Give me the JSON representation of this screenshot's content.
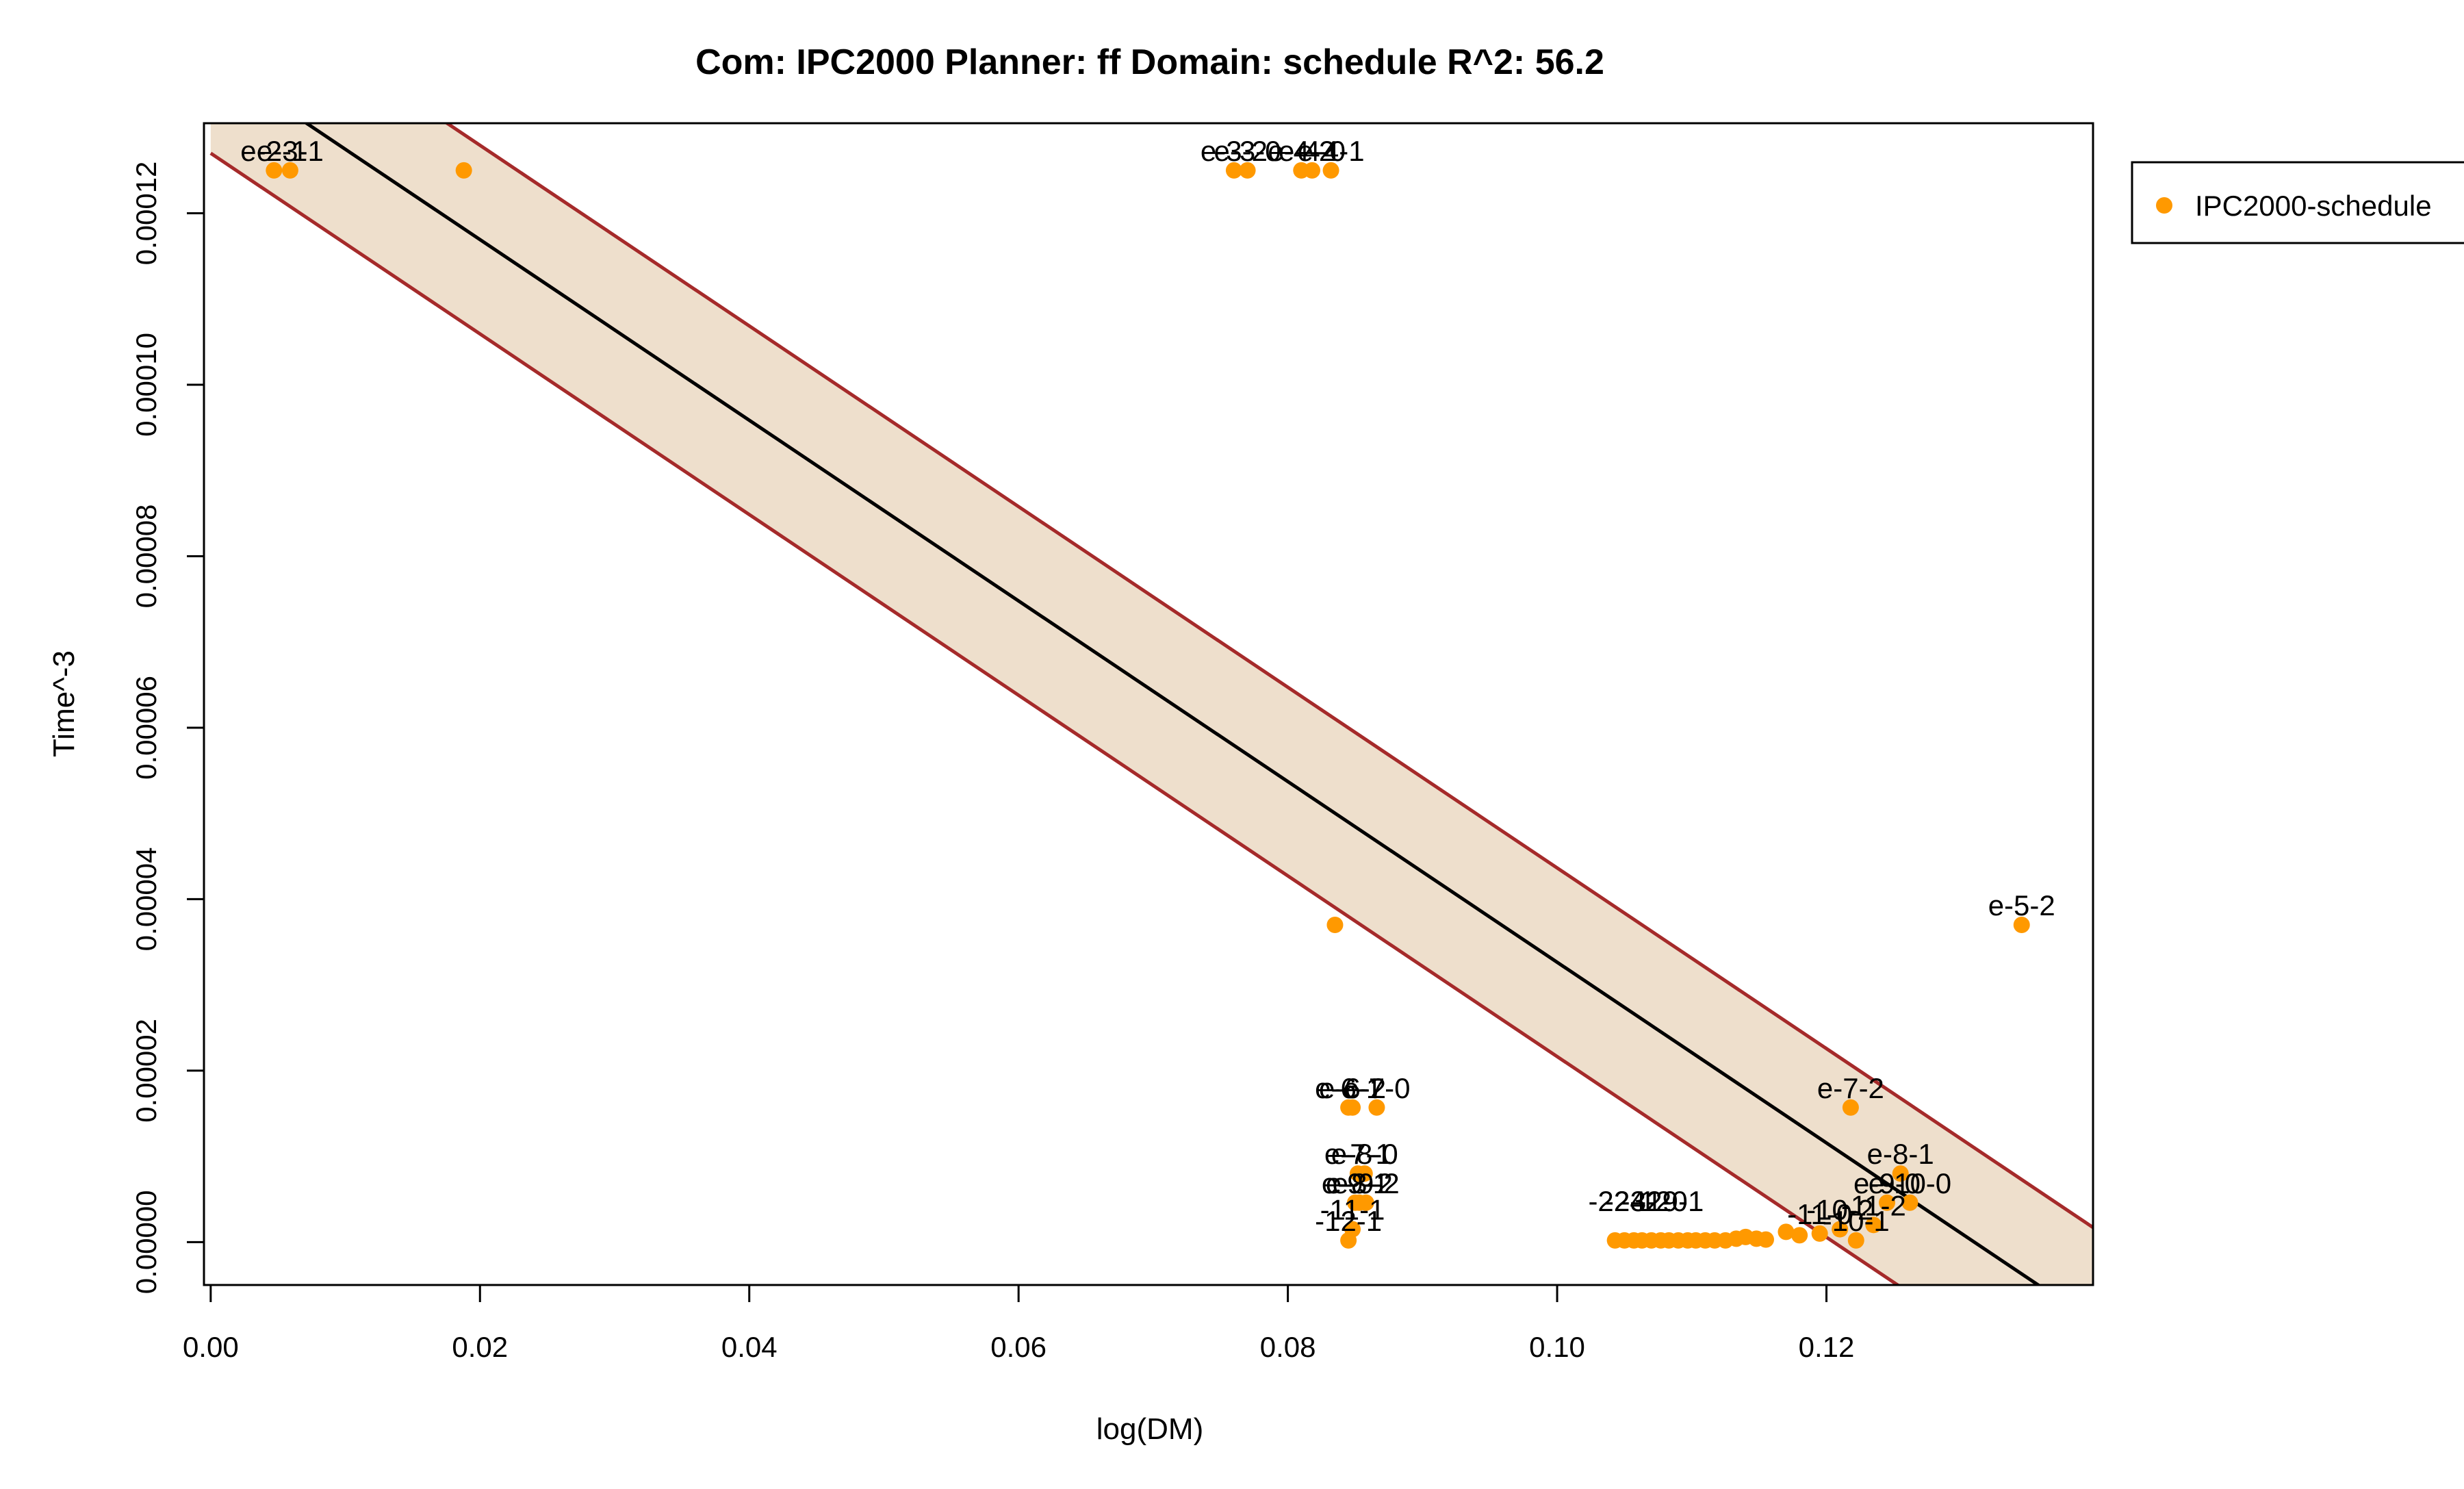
{
  "chart_data": {
    "type": "scatter",
    "title": "Com: IPC2000 Planner: ff Domain: schedule R^2: 56.2",
    "xlabel": "log(DM)",
    "ylabel": "Time^-3",
    "xlim": [
      -0.0005,
      0.1398
    ],
    "ylim": [
      -5e-06,
      0.0001305
    ],
    "xticks": [
      0.0,
      0.02,
      0.04,
      0.06,
      0.08,
      0.1,
      0.12
    ],
    "xtick_labels": [
      "0.00",
      "0.02",
      "0.04",
      "0.06",
      "0.08",
      "0.10",
      "0.12"
    ],
    "yticks": [
      0.0,
      2e-05,
      4e-05,
      6e-05,
      8e-05,
      0.0001,
      0.00012
    ],
    "ytick_labels": [
      "0.00000",
      "0.00002",
      "0.00004",
      "0.00006",
      "0.00008",
      "0.00010",
      "0.00012"
    ],
    "grid": false,
    "legend_position": "top-right, outside plot",
    "colors": {
      "points": "#ff9900",
      "band_fill": "#eedfcc",
      "band_edge": "#a52a2a",
      "fit_line": "#000000"
    },
    "fit": {
      "x": [
        0.0,
        0.14
      ],
      "y": [
        0.000138,
        -9.5e-06
      ]
    },
    "band": {
      "upper": {
        "x": [
          0.0,
          0.14
        ],
        "y": [
          0.000149,
          1.5e-06
        ]
      },
      "lower": {
        "x": [
          0.0,
          0.14
        ],
        "y": [
          0.000127,
          -2.05e-05
        ]
      }
    },
    "series": [
      {
        "name": "IPC2000-schedule",
        "points": [
          {
            "x": 0.0047,
            "y": 0.000125,
            "label": "e-2-1"
          },
          {
            "x": 0.0059,
            "y": 0.000125,
            "label": "e-3-1"
          },
          {
            "x": 0.0188,
            "y": 0.000125,
            "label": ""
          },
          {
            "x": 0.076,
            "y": 0.000125,
            "label": "e-3-2"
          },
          {
            "x": 0.077,
            "y": 0.000125,
            "label": "e-3-0"
          },
          {
            "x": 0.081,
            "y": 0.000125,
            "label": "e-4-2"
          },
          {
            "x": 0.0818,
            "y": 0.000125,
            "label": "e-4-0"
          },
          {
            "x": 0.0832,
            "y": 0.000125,
            "label": "e-4-1"
          },
          {
            "x": 0.0835,
            "y": 3.7e-05,
            "label": ""
          },
          {
            "x": 0.1345,
            "y": 3.7e-05,
            "label": "e-5-2"
          },
          {
            "x": 0.0845,
            "y": 1.57e-05,
            "label": "e-6-1"
          },
          {
            "x": 0.0848,
            "y": 1.57e-05,
            "label": "e-6-2"
          },
          {
            "x": 0.0866,
            "y": 1.57e-05,
            "label": "e-7-0"
          },
          {
            "x": 0.1218,
            "y": 1.57e-05,
            "label": "e-7-2"
          },
          {
            "x": 0.0852,
            "y": 8e-06,
            "label": "e-7-1"
          },
          {
            "x": 0.0857,
            "y": 8e-06,
            "label": "e-8-0"
          },
          {
            "x": 0.085,
            "y": 4.6e-06,
            "label": "e-9-1"
          },
          {
            "x": 0.0853,
            "y": 4.6e-06,
            "label": "e-8-2"
          },
          {
            "x": 0.0858,
            "y": 4.6e-06,
            "label": "e-9-2"
          },
          {
            "x": 0.0848,
            "y": 1.5e-06,
            "label": "-11-1"
          },
          {
            "x": 0.0845,
            "y": 2e-07,
            "label": "-12-1"
          },
          {
            "x": 0.1255,
            "y": 8e-06,
            "label": "e-8-1"
          },
          {
            "x": 0.1245,
            "y": 4.6e-06,
            "label": "e-9-0"
          },
          {
            "x": 0.1262,
            "y": 4.6e-06,
            "label": "e-10-0"
          },
          {
            "x": 0.1235,
            "y": 2e-06,
            "label": "-11-2"
          },
          {
            "x": 0.1222,
            "y": 2e-07,
            "label": "-10-1"
          },
          {
            "x": 0.1195,
            "y": 1e-06,
            "label": "-11-0"
          },
          {
            "x": 0.121,
            "y": 1.5e-06,
            "label": "-10-2"
          },
          {
            "x": 0.117,
            "y": 1.2e-06,
            "label": ""
          },
          {
            "x": 0.118,
            "y": 8e-07,
            "label": ""
          },
          {
            "x": 0.1043,
            "y": 2e-07,
            "label": ""
          },
          {
            "x": 0.105,
            "y": 2e-07,
            "label": ""
          },
          {
            "x": 0.1057,
            "y": 2e-07,
            "label": ""
          },
          {
            "x": 0.1063,
            "y": 2e-07,
            "label": ""
          },
          {
            "x": 0.107,
            "y": 2e-07,
            "label": ""
          },
          {
            "x": 0.1077,
            "y": 2e-07,
            "label": ""
          },
          {
            "x": 0.1083,
            "y": 2e-07,
            "label": ""
          },
          {
            "x": 0.109,
            "y": 2e-07,
            "label": ""
          },
          {
            "x": 0.1097,
            "y": 2e-07,
            "label": ""
          },
          {
            "x": 0.1103,
            "y": 2e-07,
            "label": ""
          },
          {
            "x": 0.111,
            "y": 2e-07,
            "label": ""
          },
          {
            "x": 0.1117,
            "y": 2e-07,
            "label": ""
          },
          {
            "x": 0.1125,
            "y": 2e-07,
            "label": ""
          },
          {
            "x": 0.1133,
            "y": 4e-07,
            "label": ""
          },
          {
            "x": 0.114,
            "y": 6e-07,
            "label": ""
          },
          {
            "x": 0.1148,
            "y": 4e-07,
            "label": ""
          },
          {
            "x": 0.1155,
            "y": 3e-07,
            "label": ""
          }
        ]
      }
    ],
    "cluster_labels": [
      {
        "x": 0.1048,
        "y": 2.5e-06,
        "label": "-22-1"
      },
      {
        "x": 0.106,
        "y": 2.5e-06,
        "label": "-24-2"
      },
      {
        "x": 0.1072,
        "y": 2.5e-06,
        "label": "-31-0"
      },
      {
        "x": 0.1084,
        "y": 2.5e-06,
        "label": "-29-1"
      }
    ]
  }
}
